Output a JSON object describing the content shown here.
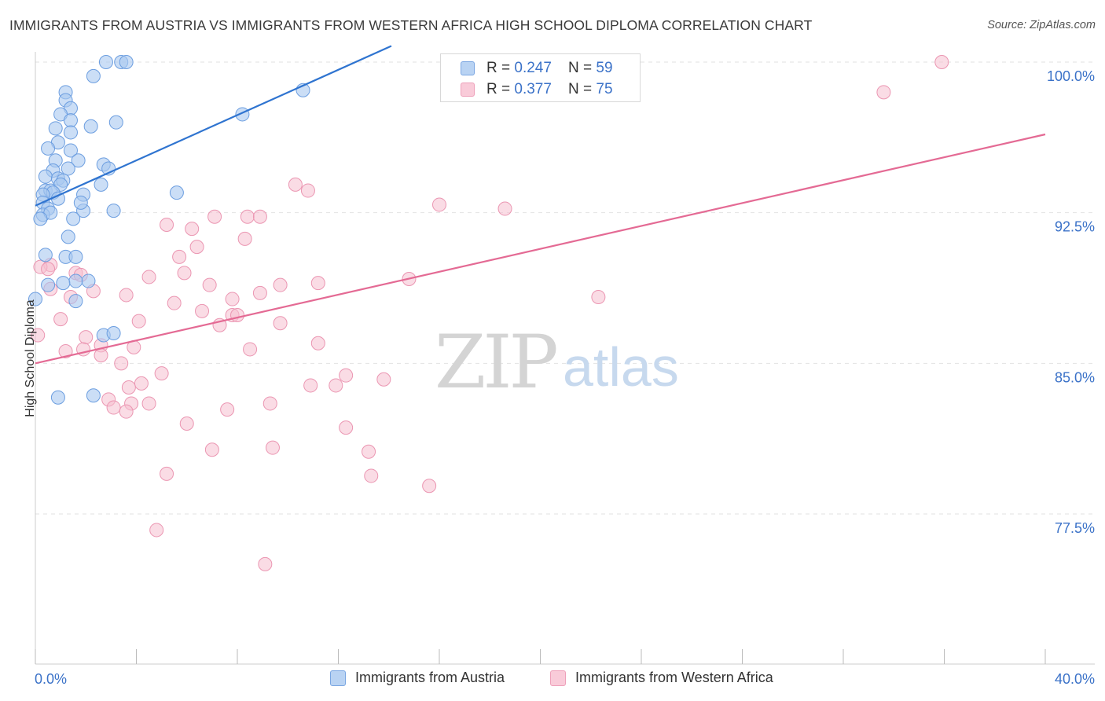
{
  "title": "IMMIGRANTS FROM AUSTRIA VS IMMIGRANTS FROM WESTERN AFRICA HIGH SCHOOL DIPLOMA CORRELATION CHART",
  "source": "Source: ZipAtlas.com",
  "watermark": {
    "zip": "ZIP",
    "atlas": "atlas"
  },
  "legend_top": {
    "rows": [
      {
        "r_label": "R = ",
        "r_value": "0.247",
        "n_label": "N = ",
        "n_value": "59"
      },
      {
        "r_label": "R = ",
        "r_value": "0.377",
        "n_label": "N = ",
        "n_value": "75"
      }
    ]
  },
  "legend_bottom": {
    "series_a": "Immigrants from Austria",
    "series_b": "Immigrants from Western Africa"
  },
  "chart_data": {
    "type": "scatter",
    "title": "IMMIGRANTS FROM AUSTRIA VS IMMIGRANTS FROM WESTERN AFRICA HIGH SCHOOL DIPLOMA CORRELATION CHART",
    "xlabel": "",
    "ylabel": "High School Diploma",
    "xlim": [
      0,
      40
    ],
    "ylim": [
      70.0,
      100.8
    ],
    "x_tick_labels": [
      "0.0%",
      "40.0%"
    ],
    "y_ticks": [
      {
        "value": 100.0,
        "label": "100.0%"
      },
      {
        "value": 92.5,
        "label": "92.5%"
      },
      {
        "value": 85.0,
        "label": "85.0%"
      },
      {
        "value": 77.5,
        "label": "77.5%"
      }
    ],
    "grid": true,
    "legend_position": "top-center",
    "colors": {
      "austria_fill": "#a9c8f0",
      "austria_stroke": "#6c9ee0",
      "austria_line": "#2f74d0",
      "wafrica_fill": "#f6bfd0",
      "wafrica_stroke": "#eb96b2",
      "wafrica_line": "#e46a94",
      "tick_label": "#3b72c8"
    },
    "series": [
      {
        "name": "Immigrants from Austria",
        "r": 0.247,
        "n": 59,
        "trend": {
          "x0": 0.0,
          "y0": 92.85,
          "x1": 14.1,
          "y1": 100.8
        },
        "points": [
          [
            2.8,
            100.0
          ],
          [
            3.4,
            100.0
          ],
          [
            3.6,
            100.0
          ],
          [
            2.3,
            99.3
          ],
          [
            1.2,
            98.5
          ],
          [
            1.2,
            98.1
          ],
          [
            1.4,
            97.7
          ],
          [
            1.0,
            97.4
          ],
          [
            1.4,
            97.1
          ],
          [
            3.2,
            97.0
          ],
          [
            2.2,
            96.8
          ],
          [
            0.8,
            96.7
          ],
          [
            1.4,
            96.5
          ],
          [
            0.9,
            96.0
          ],
          [
            0.5,
            95.7
          ],
          [
            1.4,
            95.6
          ],
          [
            0.8,
            95.1
          ],
          [
            1.7,
            95.1
          ],
          [
            2.7,
            94.9
          ],
          [
            1.3,
            94.7
          ],
          [
            2.9,
            94.7
          ],
          [
            0.7,
            94.6
          ],
          [
            0.4,
            94.3
          ],
          [
            0.9,
            94.2
          ],
          [
            1.1,
            94.1
          ],
          [
            1.0,
            93.9
          ],
          [
            2.6,
            93.9
          ],
          [
            0.4,
            93.6
          ],
          [
            0.6,
            93.6
          ],
          [
            0.7,
            93.5
          ],
          [
            1.9,
            93.4
          ],
          [
            5.6,
            93.5
          ],
          [
            0.3,
            93.4
          ],
          [
            0.3,
            93.0
          ],
          [
            0.5,
            92.7
          ],
          [
            0.3,
            92.4
          ],
          [
            0.6,
            92.5
          ],
          [
            1.9,
            92.6
          ],
          [
            3.1,
            92.6
          ],
          [
            0.2,
            92.2
          ],
          [
            1.3,
            91.3
          ],
          [
            1.2,
            90.3
          ],
          [
            1.6,
            90.3
          ],
          [
            0.4,
            90.4
          ],
          [
            2.1,
            89.1
          ],
          [
            1.6,
            89.1
          ],
          [
            1.1,
            89.0
          ],
          [
            1.6,
            88.1
          ],
          [
            2.7,
            86.4
          ],
          [
            3.1,
            86.5
          ],
          [
            0.0,
            88.2
          ],
          [
            2.3,
            83.4
          ],
          [
            0.9,
            83.3
          ],
          [
            8.2,
            97.4
          ],
          [
            10.6,
            98.6
          ],
          [
            0.5,
            88.9
          ],
          [
            1.8,
            93.0
          ],
          [
            1.5,
            92.2
          ],
          [
            0.9,
            93.2
          ]
        ]
      },
      {
        "name": "Immigrants from Western Africa",
        "r": 0.377,
        "n": 75,
        "trend": {
          "x0": 0.0,
          "y0": 85.0,
          "x1": 40.0,
          "y1": 96.4
        },
        "points": [
          [
            16.8,
            100.0
          ],
          [
            35.9,
            100.0
          ],
          [
            33.6,
            98.5
          ],
          [
            10.3,
            93.9
          ],
          [
            10.8,
            93.6
          ],
          [
            16.0,
            92.9
          ],
          [
            18.6,
            92.7
          ],
          [
            7.1,
            92.3
          ],
          [
            8.4,
            92.3
          ],
          [
            8.9,
            92.3
          ],
          [
            5.2,
            91.9
          ],
          [
            6.2,
            91.7
          ],
          [
            8.3,
            91.2
          ],
          [
            6.4,
            90.8
          ],
          [
            5.7,
            90.3
          ],
          [
            0.6,
            89.9
          ],
          [
            0.2,
            89.8
          ],
          [
            0.5,
            89.7
          ],
          [
            1.6,
            89.5
          ],
          [
            1.8,
            89.4
          ],
          [
            4.5,
            89.3
          ],
          [
            5.9,
            89.5
          ],
          [
            14.8,
            89.2
          ],
          [
            11.2,
            89.0
          ],
          [
            6.9,
            88.9
          ],
          [
            9.7,
            88.9
          ],
          [
            0.6,
            88.7
          ],
          [
            2.3,
            88.6
          ],
          [
            8.9,
            88.5
          ],
          [
            3.6,
            88.4
          ],
          [
            22.3,
            88.3
          ],
          [
            1.4,
            88.3
          ],
          [
            7.8,
            88.2
          ],
          [
            5.5,
            88.0
          ],
          [
            6.6,
            87.6
          ],
          [
            7.8,
            87.4
          ],
          [
            8.0,
            87.4
          ],
          [
            1.0,
            87.2
          ],
          [
            4.1,
            87.1
          ],
          [
            9.7,
            87.0
          ],
          [
            7.3,
            86.9
          ],
          [
            2.0,
            86.3
          ],
          [
            11.2,
            86.0
          ],
          [
            1.9,
            85.7
          ],
          [
            3.9,
            85.8
          ],
          [
            2.6,
            85.9
          ],
          [
            8.5,
            85.7
          ],
          [
            1.2,
            85.6
          ],
          [
            2.6,
            85.4
          ],
          [
            3.4,
            85.0
          ],
          [
            5.0,
            84.5
          ],
          [
            12.3,
            84.4
          ],
          [
            13.8,
            84.2
          ],
          [
            4.2,
            84.0
          ],
          [
            3.7,
            83.8
          ],
          [
            10.9,
            83.9
          ],
          [
            11.9,
            83.9
          ],
          [
            2.9,
            83.2
          ],
          [
            3.8,
            83.0
          ],
          [
            9.3,
            83.0
          ],
          [
            4.5,
            83.0
          ],
          [
            3.1,
            82.8
          ],
          [
            7.6,
            82.7
          ],
          [
            3.6,
            82.6
          ],
          [
            6.0,
            82.0
          ],
          [
            12.3,
            81.8
          ],
          [
            7.0,
            80.7
          ],
          [
            9.4,
            80.8
          ],
          [
            13.2,
            80.6
          ],
          [
            5.2,
            79.5
          ],
          [
            13.3,
            79.4
          ],
          [
            15.6,
            78.9
          ],
          [
            4.8,
            76.7
          ],
          [
            9.1,
            75.0
          ],
          [
            0.1,
            86.4
          ]
        ]
      }
    ]
  }
}
